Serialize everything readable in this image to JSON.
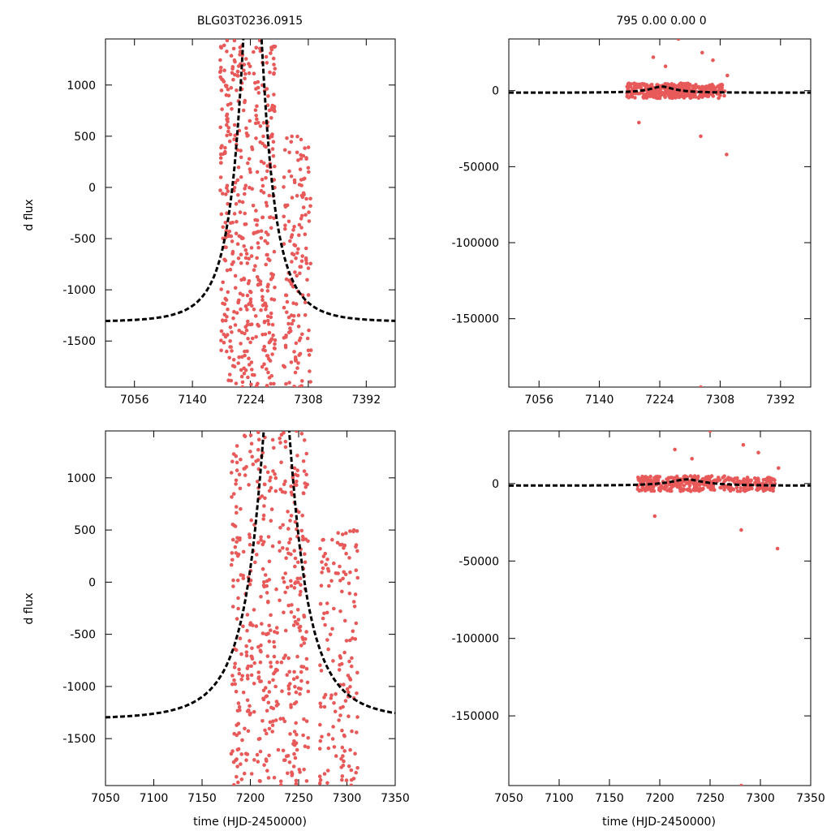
{
  "chart_data": [
    {
      "id": "p1",
      "type": "scatter",
      "title": "BLG03T0236.0915",
      "ylabel": "d flux",
      "xlabel": "",
      "xlim": [
        7014,
        7434
      ],
      "ylim": [
        -1950,
        1450
      ],
      "xticks": [
        7056,
        7140,
        7224,
        7308,
        7392
      ],
      "yticks": [
        -1500,
        -1000,
        -500,
        0,
        500,
        1000
      ],
      "xtick_labels": [
        "7056",
        "7140",
        "7224",
        "7308",
        "7392"
      ],
      "ytick_labels": [
        "-1500",
        "-1000",
        "-500",
        "0",
        "500",
        "1000"
      ],
      "series": [
        {
          "name": "data",
          "kind": "points",
          "color": "#e85a5a",
          "clusters": [
            {
              "x": [
                7180,
                7200
              ],
              "y": [
                -1950,
                1450
              ],
              "n": 120
            },
            {
              "x": [
                7200,
                7245
              ],
              "y": [
                -1950,
                1450
              ],
              "n": 230
            },
            {
              "x": [
                7245,
                7260
              ],
              "y": [
                -1950,
                1450
              ],
              "n": 110
            },
            {
              "x": [
                7272,
                7312
              ],
              "y": [
                -1950,
                500
              ],
              "n": 150
            }
          ]
        },
        {
          "name": "model",
          "kind": "paczynski",
          "color": "#000000",
          "t0": 7227,
          "tE": 52,
          "fs": 3600,
          "fb": -2950
        }
      ]
    },
    {
      "id": "p2",
      "type": "scatter",
      "title": "795  0.00   0.00   0",
      "ylabel": "",
      "xlabel": "",
      "xlim": [
        7014,
        7434
      ],
      "ylim": [
        -195000,
        34000
      ],
      "xticks": [
        7056,
        7140,
        7224,
        7308,
        7392
      ],
      "yticks": [
        -150000,
        -100000,
        -50000,
        0
      ],
      "xtick_labels": [
        "7056",
        "7140",
        "7224",
        "7308",
        "7392"
      ],
      "ytick_labels": [
        "-150000",
        "-100000",
        "-50000",
        "0"
      ],
      "series": [
        {
          "name": "data",
          "kind": "points",
          "color": "#e85a5a",
          "clusters": [
            {
              "x": [
                7178,
                7265
              ],
              "y": [
                -5000,
                5000
              ],
              "n": 260
            },
            {
              "x": [
                7265,
                7315
              ],
              "y": [
                -5000,
                4000
              ],
              "n": 120
            }
          ],
          "outliers": [
            [
              7195,
              -21000
            ],
            [
              7215,
              22000
            ],
            [
              7232,
              16000
            ],
            [
              7250,
              34000
            ],
            [
              7283,
              25000
            ],
            [
              7298,
              20000
            ],
            [
              7318,
              10000
            ],
            [
              7281,
              -30000
            ],
            [
              7317,
              -42000
            ],
            [
              7281,
              -195000
            ]
          ]
        },
        {
          "name": "model",
          "kind": "paczynski",
          "color": "#000000",
          "t0": 7227,
          "tE": 52,
          "fs": 3600,
          "fb": -2950
        }
      ]
    },
    {
      "id": "p3",
      "type": "scatter",
      "title": "",
      "ylabel": "d flux",
      "xlabel": "time (HJD-2450000)",
      "xlim": [
        7050,
        7350
      ],
      "ylim": [
        -1950,
        1450
      ],
      "xticks": [
        7050,
        7100,
        7150,
        7200,
        7250,
        7300,
        7350
      ],
      "yticks": [
        -1500,
        -1000,
        -500,
        0,
        500,
        1000
      ],
      "xtick_labels": [
        "7050",
        "7100",
        "7150",
        "7200",
        "7250",
        "7300",
        "7350"
      ],
      "ytick_labels": [
        "-1500",
        "-1000",
        "-500",
        "0",
        "500",
        "1000"
      ],
      "series": [
        {
          "name": "data",
          "kind": "points",
          "color": "#e85a5a",
          "clusters": [
            {
              "x": [
                7180,
                7200
              ],
              "y": [
                -1950,
                1450
              ],
              "n": 120
            },
            {
              "x": [
                7200,
                7245
              ],
              "y": [
                -1950,
                1450
              ],
              "n": 230
            },
            {
              "x": [
                7245,
                7260
              ],
              "y": [
                -1950,
                1450
              ],
              "n": 110
            },
            {
              "x": [
                7272,
                7312
              ],
              "y": [
                -1950,
                500
              ],
              "n": 150
            }
          ]
        },
        {
          "name": "model",
          "kind": "paczynski",
          "color": "#000000",
          "t0": 7227,
          "tE": 52,
          "fs": 3600,
          "fb": -2950
        }
      ]
    },
    {
      "id": "p4",
      "type": "scatter",
      "title": "",
      "ylabel": "",
      "xlabel": "time (HJD-2450000)",
      "xlim": [
        7050,
        7350
      ],
      "ylim": [
        -195000,
        34000
      ],
      "xticks": [
        7050,
        7100,
        7150,
        7200,
        7250,
        7300,
        7350
      ],
      "yticks": [
        -150000,
        -100000,
        -50000,
        0
      ],
      "xtick_labels": [
        "7050",
        "7100",
        "7150",
        "7200",
        "7250",
        "7300",
        "7350"
      ],
      "ytick_labels": [
        "-150000",
        "-100000",
        "-50000",
        "0"
      ],
      "series": [
        {
          "name": "data",
          "kind": "points",
          "color": "#e85a5a",
          "clusters": [
            {
              "x": [
                7178,
                7265
              ],
              "y": [
                -5000,
                5000
              ],
              "n": 260
            },
            {
              "x": [
                7265,
                7315
              ],
              "y": [
                -5000,
                4000
              ],
              "n": 120
            }
          ],
          "outliers": [
            [
              7195,
              -21000
            ],
            [
              7215,
              22000
            ],
            [
              7232,
              16000
            ],
            [
              7250,
              34000
            ],
            [
              7283,
              25000
            ],
            [
              7298,
              20000
            ],
            [
              7318,
              10000
            ],
            [
              7281,
              -30000
            ],
            [
              7317,
              -42000
            ],
            [
              7281,
              -195000
            ]
          ]
        },
        {
          "name": "model",
          "kind": "paczynski",
          "color": "#000000",
          "t0": 7227,
          "tE": 52,
          "fs": 3600,
          "fb": -2950
        }
      ]
    }
  ]
}
